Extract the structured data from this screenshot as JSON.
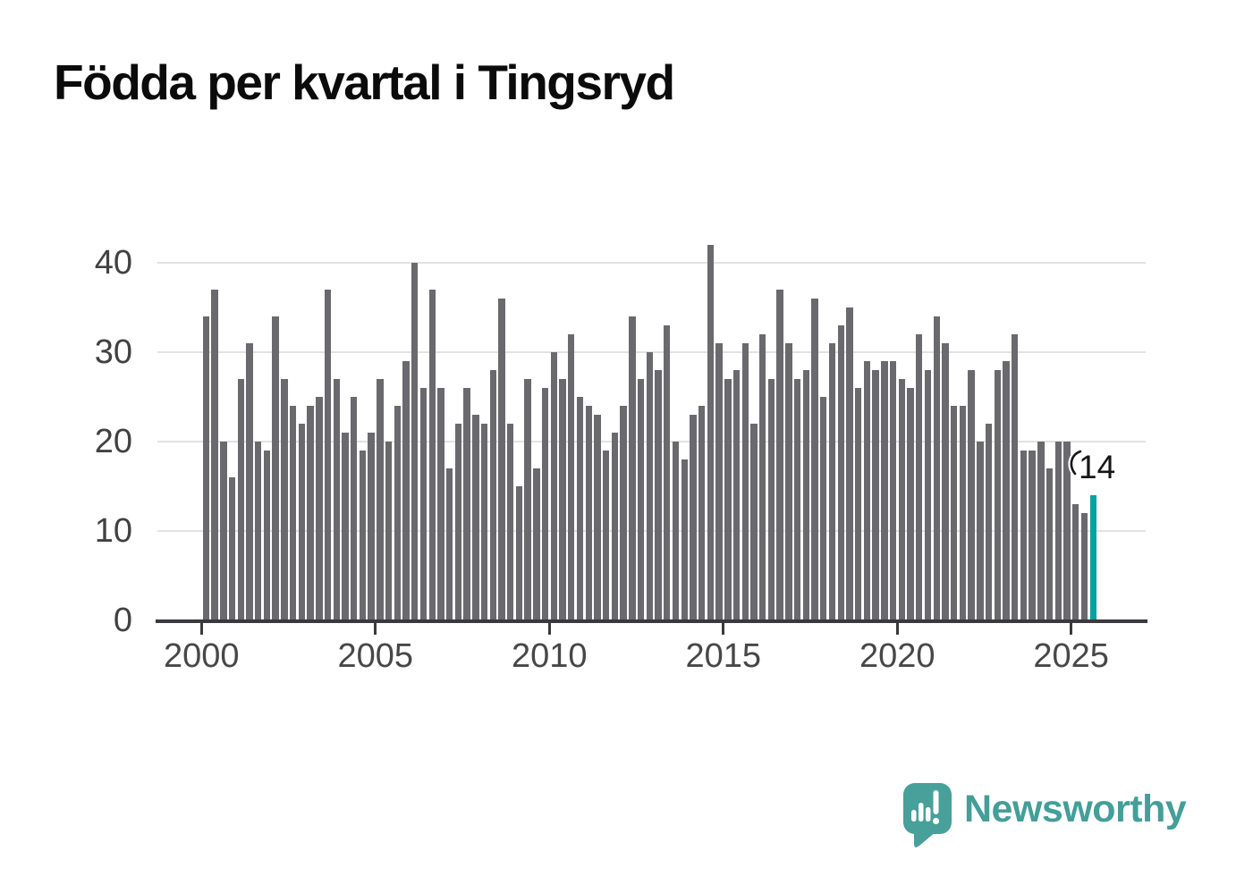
{
  "title": "Födda per kvartal i Tingsryd",
  "annotation": {
    "label": "14"
  },
  "logo": {
    "text": "Newsworthy"
  },
  "colors": {
    "bar": "#69696e",
    "highlight": "#09a1a2",
    "grid": "#e2e2e2",
    "axis": "#3a3a3e",
    "tick_label": "#474747",
    "y_label": "#414141",
    "title": "#0b0b0b",
    "annotation": "#161616",
    "logo_teal": "#449e99"
  },
  "chart_data": {
    "type": "bar",
    "title": "Födda per kvartal i Tingsryd",
    "x_frequency": "quarterly",
    "categories": [
      "2000Q1",
      "2000Q2",
      "2000Q3",
      "2000Q4",
      "2001Q1",
      "2001Q2",
      "2001Q3",
      "2001Q4",
      "2002Q1",
      "2002Q2",
      "2002Q3",
      "2002Q4",
      "2003Q1",
      "2003Q2",
      "2003Q3",
      "2003Q4",
      "2004Q1",
      "2004Q2",
      "2004Q3",
      "2004Q4",
      "2005Q1",
      "2005Q2",
      "2005Q3",
      "2005Q4",
      "2006Q1",
      "2006Q2",
      "2006Q3",
      "2006Q4",
      "2007Q1",
      "2007Q2",
      "2007Q3",
      "2007Q4",
      "2008Q1",
      "2008Q2",
      "2008Q3",
      "2008Q4",
      "2009Q1",
      "2009Q2",
      "2009Q3",
      "2009Q4",
      "2010Q1",
      "2010Q2",
      "2010Q3",
      "2010Q4",
      "2011Q1",
      "2011Q2",
      "2011Q3",
      "2011Q4",
      "2012Q1",
      "2012Q2",
      "2012Q3",
      "2012Q4",
      "2013Q1",
      "2013Q2",
      "2013Q3",
      "2013Q4",
      "2014Q1",
      "2014Q2",
      "2014Q3",
      "2014Q4",
      "2015Q1",
      "2015Q2",
      "2015Q3",
      "2015Q4",
      "2016Q1",
      "2016Q2",
      "2016Q3",
      "2016Q4",
      "2017Q1",
      "2017Q2",
      "2017Q3",
      "2017Q4",
      "2018Q1",
      "2018Q2",
      "2018Q3",
      "2018Q4",
      "2019Q1",
      "2019Q2",
      "2019Q3",
      "2019Q4",
      "2020Q1",
      "2020Q2",
      "2020Q3",
      "2020Q4",
      "2021Q1",
      "2021Q2",
      "2021Q3",
      "2021Q4",
      "2022Q1",
      "2022Q2",
      "2022Q3",
      "2022Q4",
      "2023Q1",
      "2023Q2",
      "2023Q3",
      "2023Q4",
      "2024Q1",
      "2024Q2",
      "2024Q3",
      "2024Q4",
      "2025Q1",
      "2025Q2",
      "2025Q3"
    ],
    "values": [
      34,
      37,
      20,
      16,
      27,
      31,
      20,
      19,
      34,
      27,
      24,
      22,
      24,
      25,
      37,
      27,
      21,
      25,
      19,
      21,
      27,
      20,
      24,
      29,
      40,
      26,
      37,
      26,
      17,
      22,
      26,
      23,
      22,
      28,
      36,
      22,
      15,
      27,
      17,
      26,
      30,
      27,
      32,
      25,
      24,
      23,
      19,
      21,
      24,
      34,
      27,
      30,
      28,
      33,
      20,
      18,
      23,
      24,
      42,
      31,
      27,
      28,
      31,
      22,
      32,
      27,
      37,
      31,
      27,
      28,
      36,
      25,
      31,
      33,
      35,
      26,
      29,
      28,
      29,
      29,
      27,
      26,
      32,
      28,
      34,
      31,
      24,
      24,
      28,
      20,
      22,
      28,
      29,
      32,
      19,
      19,
      20,
      17,
      20,
      20,
      13,
      12,
      14
    ],
    "highlight_index": 102,
    "highlight_label": "14",
    "yticks": [
      0,
      10,
      20,
      30,
      40
    ],
    "ylim": [
      0,
      44
    ],
    "xticks": [
      {
        "label": "2000",
        "index": 0
      },
      {
        "label": "2005",
        "index": 20
      },
      {
        "label": "2010",
        "index": 40
      },
      {
        "label": "2015",
        "index": 60
      },
      {
        "label": "2020",
        "index": 80
      },
      {
        "label": "2025",
        "index": 100
      }
    ],
    "grid": "horizontal",
    "legend": "none"
  }
}
